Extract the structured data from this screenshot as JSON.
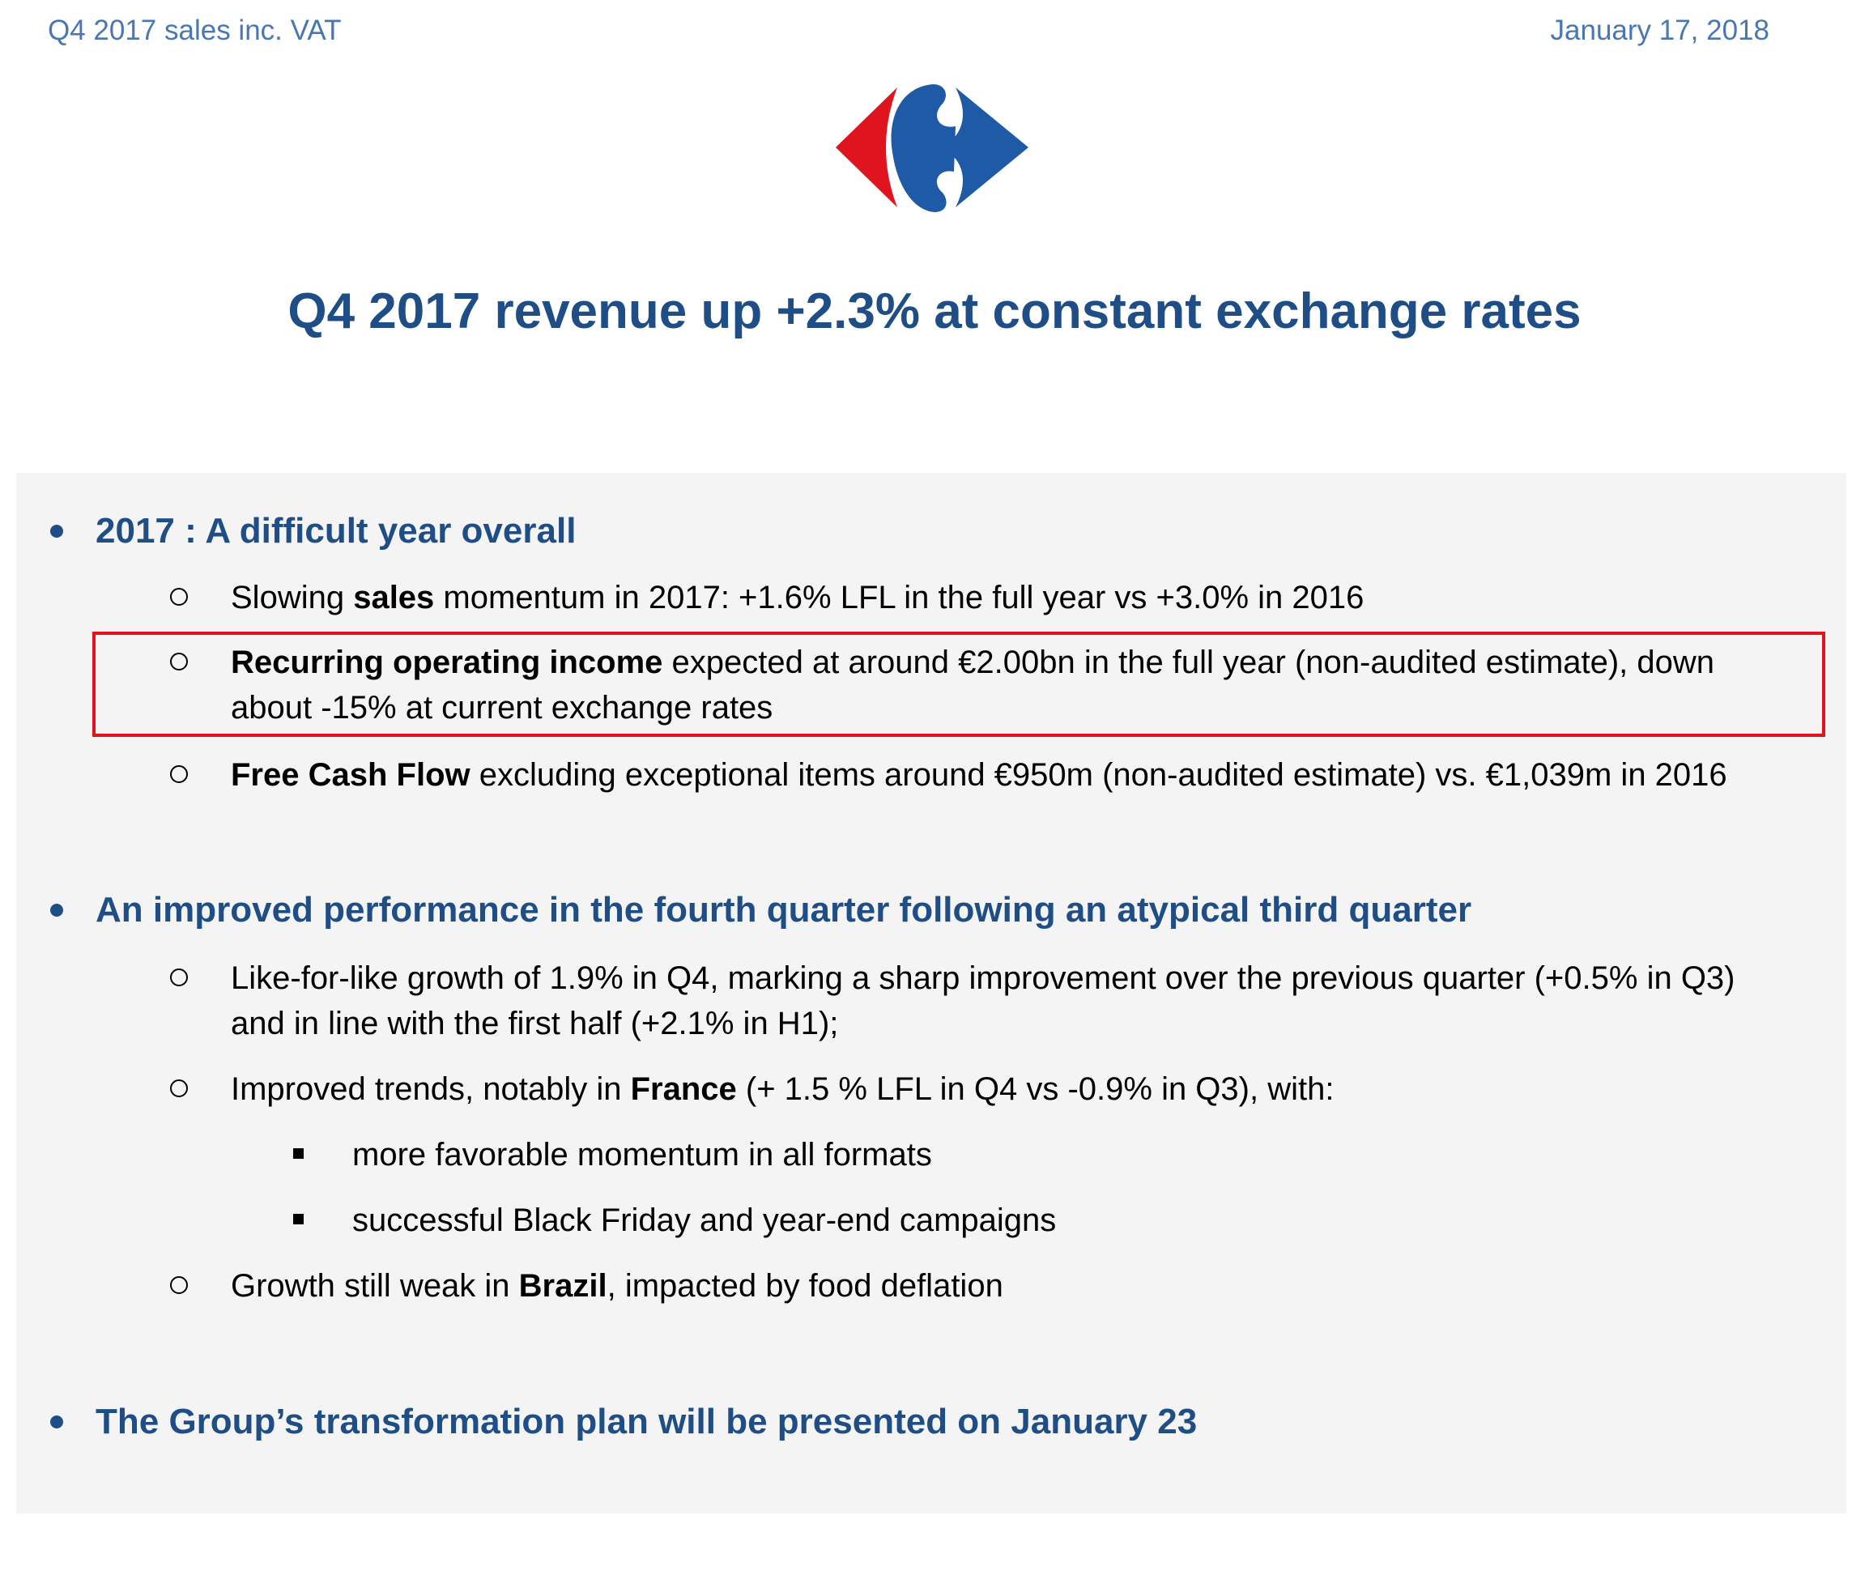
{
  "header": {
    "left_text": "Q4 2017 sales inc. VAT",
    "right_text": "January 17, 2018"
  },
  "logo": {
    "icon": "carrefour-logo",
    "colors": {
      "red": "#e0141e",
      "blue": "#1f5aa6"
    }
  },
  "title": "Q4 2017 revenue up +2.3% at constant exchange rates",
  "sections": [
    {
      "heading": "2017 : A difficult year overall",
      "items": [
        {
          "pre": "Slowing ",
          "bold": "sales",
          "post": " momentum in 2017: +1.6% LFL in the full year vs +3.0% in 2016"
        },
        {
          "bold": "Recurring operating income",
          "post": " expected at around €2.00bn in the full year (non-audited estimate), down",
          "line2": "about -15% at current exchange rates",
          "highlighted": true
        },
        {
          "bold": "Free Cash Flow",
          "post": " excluding exceptional items around €950m (non-audited estimate) vs. €1,039m in 2016"
        }
      ]
    },
    {
      "heading": "An improved performance in the fourth quarter following an atypical third quarter",
      "items": [
        {
          "text": "Like-for-like growth of 1.9% in Q4, marking a sharp improvement over the previous quarter (+0.5% in Q3)",
          "line2": "and in line with the first half (+2.1% in H1);"
        },
        {
          "pre": "Improved trends, notably in ",
          "bold": "France",
          "post": " (+ 1.5 % LFL in Q4 vs -0.9% in Q3), with:",
          "subitems": [
            "more favorable momentum in all formats",
            "successful Black Friday and year-end campaigns"
          ]
        },
        {
          "pre": "Growth still weak in ",
          "bold": "Brazil",
          "post": ", impacted by food deflation"
        }
      ]
    },
    {
      "heading": "The Group’s transformation plan will be presented on January 23"
    }
  ],
  "colors": {
    "heading_blue": "#1f4e86",
    "header_blue": "#4a77b0",
    "panel_bg": "#f4f4f4",
    "highlight_border": "#e0141e"
  }
}
